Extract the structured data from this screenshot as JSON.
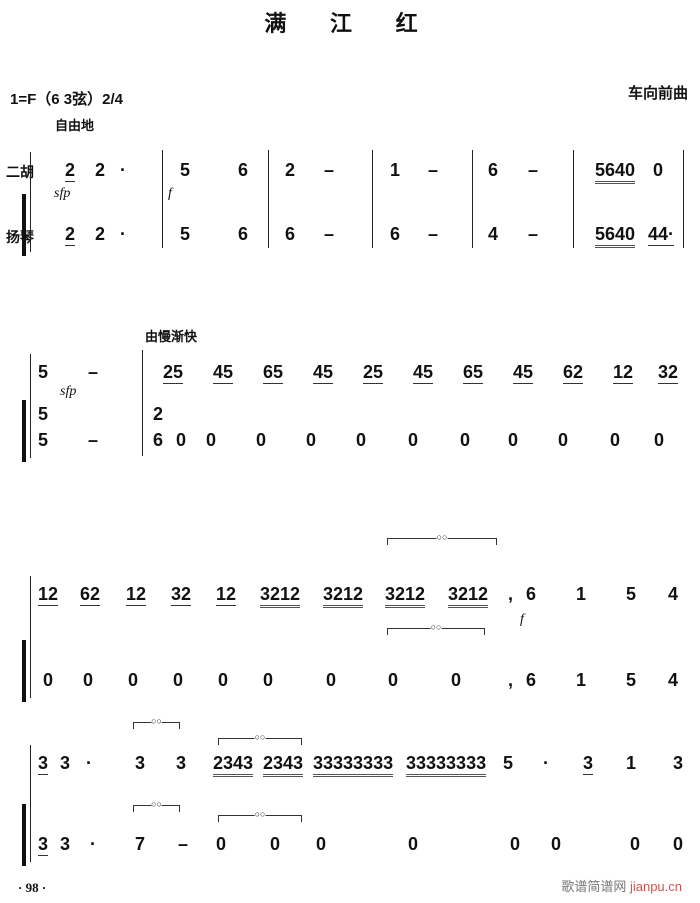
{
  "title": "满 江 红",
  "key_signature": "1=F（6 3弦）2/4",
  "composer": "车向前曲",
  "instruments": [
    "二胡",
    "扬琴"
  ],
  "tempo_marks": [
    "自由地",
    "由慢渐快"
  ],
  "dynamics": {
    "s1_sfp": "sfp",
    "s1_f": "f",
    "s2_sfp": "sfp",
    "s3_f": "f"
  },
  "systems": [
    {
      "erhu": [
        "2",
        "2",
        "·",
        "5",
        "6",
        "2",
        "–",
        "1",
        "–",
        "6",
        "–",
        "5640",
        "0"
      ],
      "yangqin": [
        "2",
        "2",
        "·",
        "5",
        "6",
        "6",
        "–",
        "6",
        "–",
        "4",
        "–",
        "5640",
        "44·"
      ]
    },
    {
      "erhu": [
        "5",
        "–",
        "25",
        "45",
        "65",
        "45",
        "25",
        "45",
        "65",
        "45",
        "62",
        "12",
        "32"
      ],
      "yangqin": [
        "5",
        "5",
        "–",
        "2",
        "6",
        "0",
        "0",
        "0",
        "0",
        "0",
        "0",
        "0",
        "0",
        "0",
        "0",
        "0"
      ]
    },
    {
      "erhu": [
        "12",
        "62",
        "12",
        "32",
        "12",
        "3212",
        "3212",
        "3212",
        "3212",
        ",",
        "6",
        "1",
        "5",
        "4"
      ],
      "yangqin": [
        "0",
        "0",
        "0",
        "0",
        "0",
        "0",
        "0",
        "0",
        "0",
        ",",
        "6",
        "1",
        "5",
        "4"
      ]
    },
    {
      "erhu": [
        "3",
        "3",
        "·",
        "3",
        "3",
        "2343",
        "2343",
        "33333333",
        "33333333",
        "5",
        "·",
        "3",
        "1",
        "3"
      ],
      "yangqin": [
        "3",
        "3",
        "·",
        "7",
        "–",
        "0",
        "0",
        "0",
        "0",
        "0",
        "0",
        "0",
        "0"
      ]
    }
  ],
  "page_number": "· 98 ·",
  "watermark": {
    "cn": "歌谱简谱网",
    "latin": "jianpu.cn"
  }
}
